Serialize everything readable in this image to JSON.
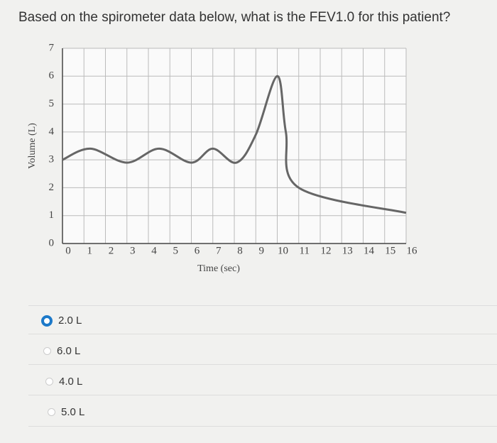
{
  "question": "Based on the spirometer data below, what is the FEV1.0 for this patient?",
  "chart_data": {
    "type": "line",
    "x_label": "Time (sec)",
    "y_label": "Volume (L)",
    "x": [
      0,
      1.3,
      3,
      4.5,
      6,
      7,
      8.1,
      9,
      10,
      10.4,
      11,
      16
    ],
    "series": [
      {
        "color": "#666666",
        "values": [
          3,
          3.4,
          2.9,
          3.4,
          2.9,
          3.4,
          2.9,
          3.9,
          6,
          4,
          2,
          1.1
        ]
      }
    ],
    "xlim": [
      0,
      16
    ],
    "xticks": [
      0,
      1,
      2,
      3,
      4,
      5,
      6,
      7,
      8,
      9,
      10,
      11,
      12,
      13,
      14,
      15,
      16
    ],
    "ylim": [
      0,
      7
    ],
    "yticks": [
      0,
      1,
      2,
      3,
      4,
      5,
      6,
      7
    ],
    "grid": true
  },
  "options": [
    "2.0 L",
    "6.0 L",
    "4.0 L",
    "5.0 L"
  ],
  "selected": 0
}
